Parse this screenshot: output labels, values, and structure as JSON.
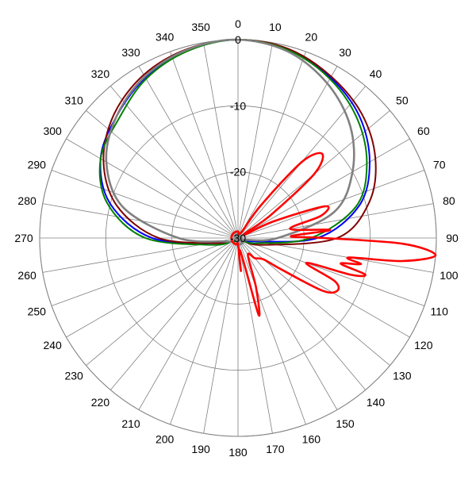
{
  "chart_data": {
    "type": "polar-line",
    "title": "",
    "angle_unit": "degrees",
    "angle_zero": "top",
    "angle_direction": "clockwise",
    "angle_ticks": [
      "0",
      "10",
      "20",
      "30",
      "40",
      "50",
      "60",
      "70",
      "80",
      "90",
      "100",
      "110",
      "120",
      "130",
      "140",
      "150",
      "160",
      "170",
      "180",
      "190",
      "200",
      "210",
      "220",
      "230",
      "240",
      "250",
      "260",
      "270",
      "280",
      "290",
      "300",
      "310",
      "320",
      "330",
      "340",
      "350"
    ],
    "radial_ticks": [
      "0",
      "-10",
      "-20",
      "-30"
    ],
    "radial_range": [
      -30,
      0
    ],
    "grid": true,
    "legend": "none",
    "series": [
      {
        "color": "#0000ff",
        "angles": [
          0,
          15,
          30,
          45,
          60,
          75,
          90,
          105,
          120,
          135,
          150,
          165,
          180,
          195,
          210,
          225,
          240,
          255,
          270,
          285,
          300,
          315,
          330,
          345
        ],
        "values": [
          0,
          -0.5,
          -2,
          -4,
          -7,
          -11,
          -18,
          -28,
          -29,
          -29,
          -29,
          -29,
          -29,
          -29,
          -29,
          -29,
          -29,
          -27,
          -17,
          -10,
          -6,
          -4,
          -2,
          -0.6
        ]
      },
      {
        "color": "#800000",
        "angles": [
          0,
          15,
          30,
          45,
          60,
          75,
          90,
          105,
          120,
          135,
          150,
          165,
          180,
          195,
          210,
          225,
          240,
          255,
          270,
          285,
          300,
          315,
          330,
          345
        ],
        "values": [
          0,
          -0.4,
          -1.8,
          -3.5,
          -6,
          -9.5,
          -15,
          -26,
          -29,
          -29,
          -29,
          -29,
          -29,
          -29,
          -29,
          -29,
          -29,
          -27,
          -18,
          -11,
          -6.5,
          -3.5,
          -1.5,
          -0.4
        ]
      },
      {
        "color": "#008000",
        "angles": [
          0,
          15,
          30,
          45,
          60,
          75,
          90,
          105,
          120,
          135,
          150,
          165,
          180,
          195,
          210,
          225,
          240,
          255,
          270,
          285,
          300,
          315,
          330,
          345
        ],
        "values": [
          0,
          -0.6,
          -2.2,
          -4.5,
          -7.5,
          -11.5,
          -19,
          -27,
          -29,
          -29,
          -29,
          -29,
          -29,
          -29,
          -29,
          -29,
          -29,
          -26,
          -16,
          -9.5,
          -6,
          -4.5,
          -2.2,
          -0.7
        ]
      },
      {
        "color": "#808080",
        "angles": [
          0,
          15,
          30,
          45,
          60,
          75,
          90,
          105,
          120,
          135,
          150,
          165,
          180,
          195,
          210,
          225,
          240,
          255,
          270,
          285,
          300,
          315,
          330,
          345
        ],
        "values": [
          0,
          -0.8,
          -3,
          -6,
          -10,
          -15,
          -24,
          -29,
          -29,
          -29,
          -29,
          -29,
          -29,
          -29,
          -29,
          -29,
          -29,
          -28,
          -21,
          -12,
          -7,
          -4,
          -1.8,
          -0.5
        ]
      },
      {
        "color": "#ff0000",
        "angles": [
          30,
          35,
          40,
          45,
          50,
          55,
          60,
          65,
          70,
          75,
          80,
          85,
          88,
          90,
          92,
          95,
          98,
          100,
          102,
          104,
          106,
          108,
          110,
          114,
          118,
          122,
          126,
          130,
          140,
          150,
          160,
          165,
          170,
          175,
          180,
          190,
          200,
          210,
          220,
          230,
          240,
          250,
          260,
          270,
          280,
          290,
          300,
          310,
          320,
          330,
          340,
          350,
          360
        ],
        "values": [
          -29,
          -24,
          -15,
          -12,
          -15,
          -24,
          -29,
          -24,
          -16,
          -17,
          -22,
          -16,
          -22,
          -17,
          -5,
          0,
          -5,
          -13,
          -11,
          -14,
          -10,
          -12,
          -19,
          -14,
          -13,
          -15,
          -22,
          -25,
          -26,
          -27,
          -22,
          -18,
          -28,
          -25,
          -29,
          -29,
          -29,
          -29,
          -29,
          -29,
          -29,
          -29,
          -29,
          -29,
          -29,
          -29,
          -29,
          -29,
          -29,
          -29,
          -29,
          -29,
          -29
        ]
      }
    ]
  }
}
